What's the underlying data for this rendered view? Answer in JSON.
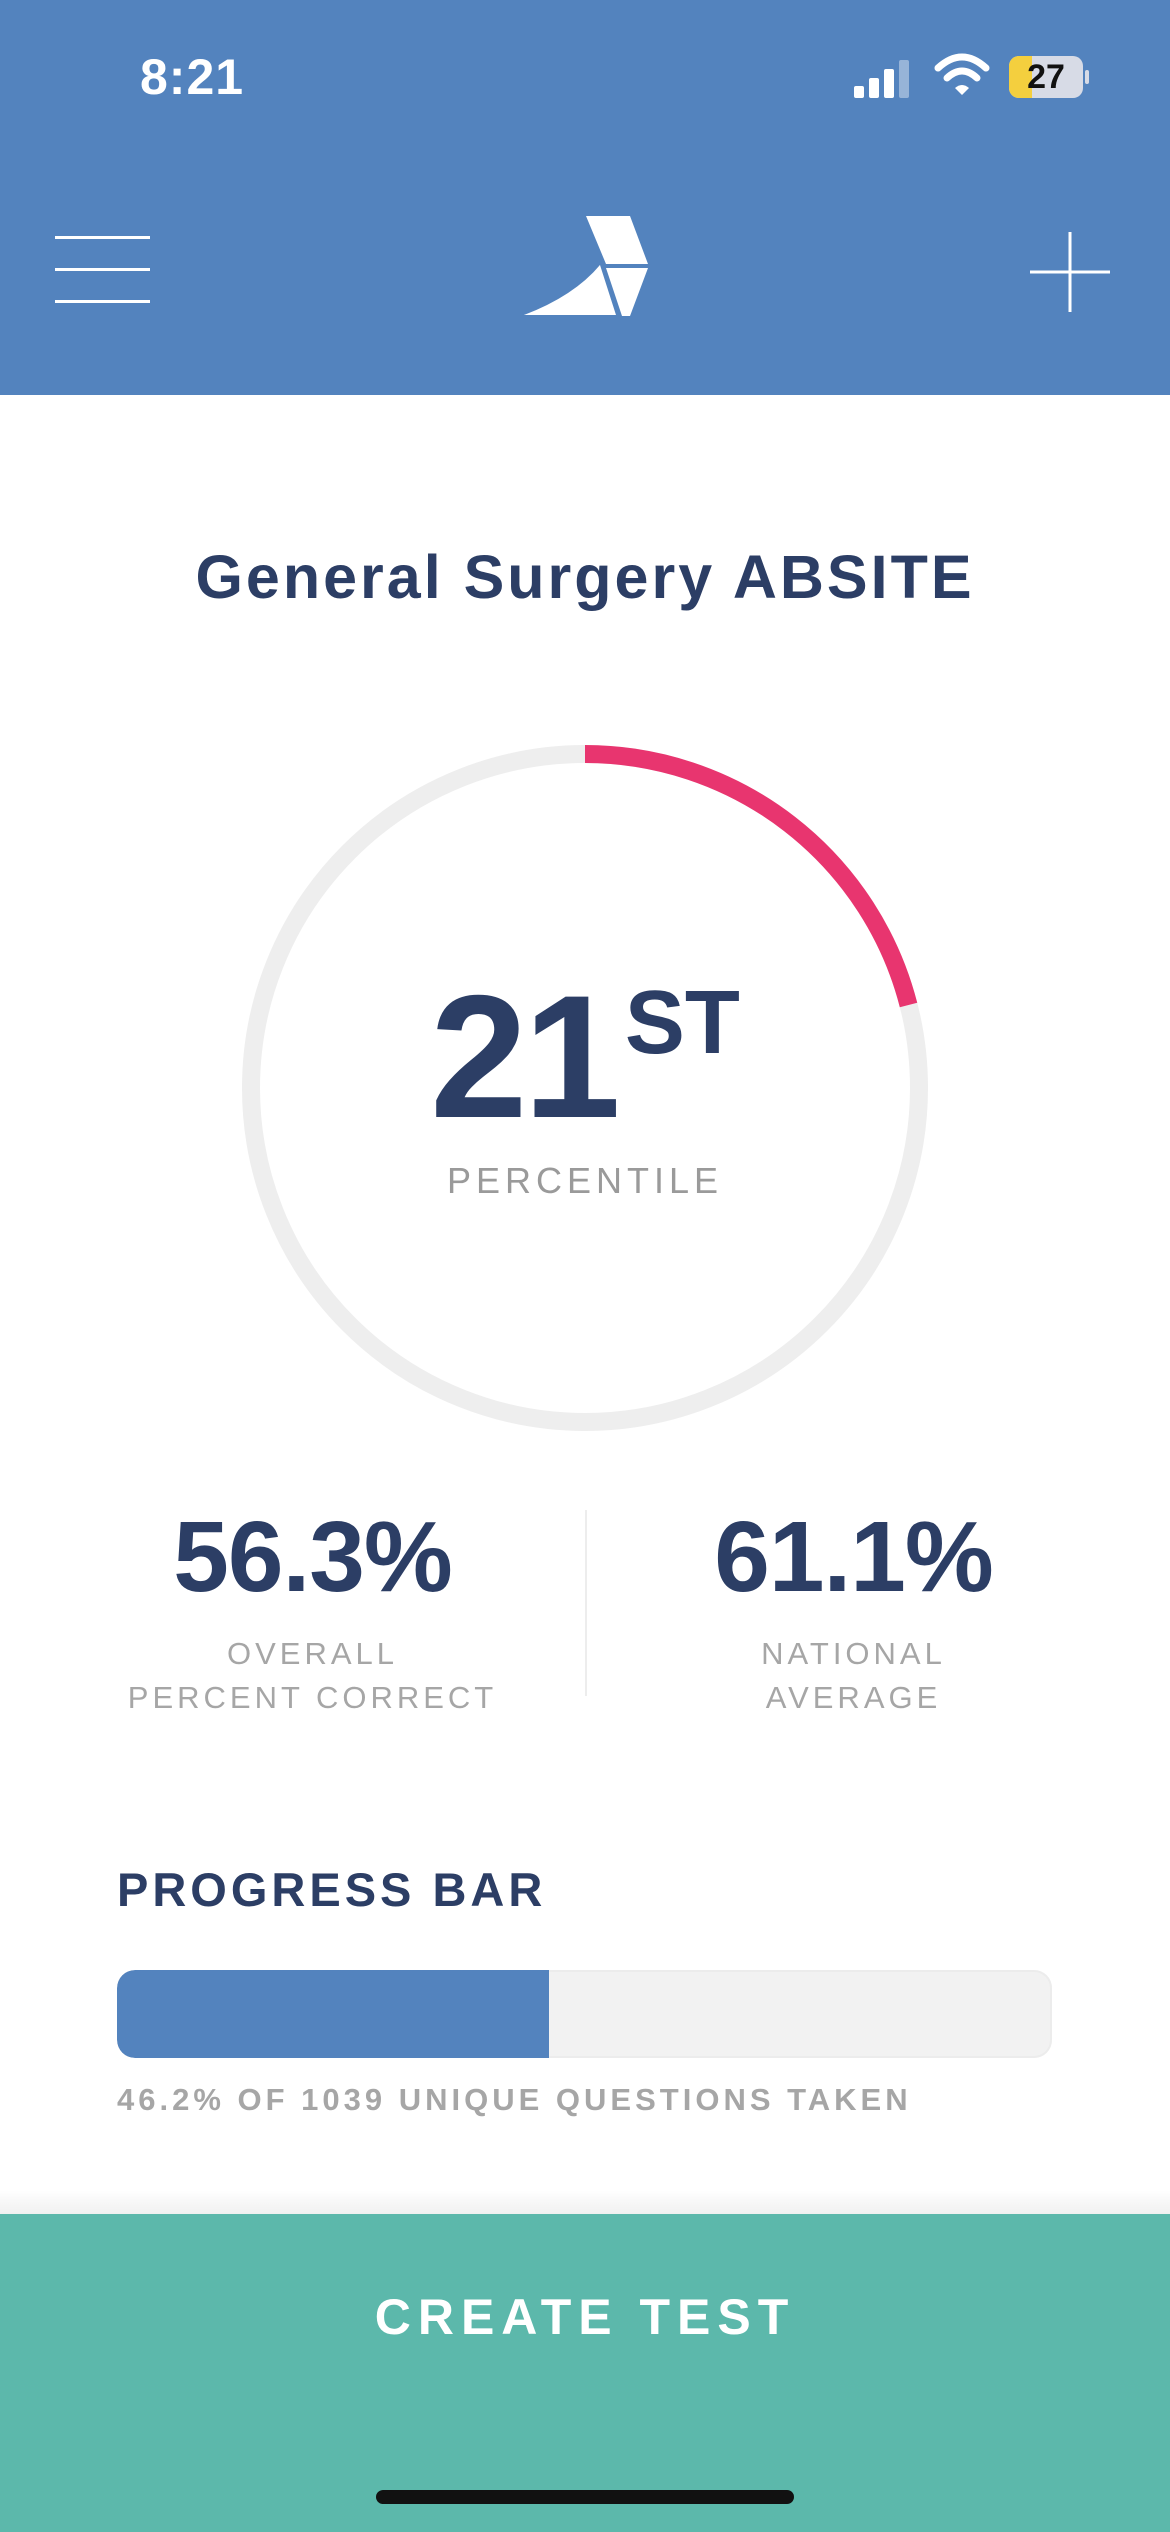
{
  "status_bar": {
    "time": "8:21",
    "battery_level": "27",
    "icons": [
      "signal-icon",
      "wifi-icon",
      "battery-icon"
    ]
  },
  "header": {
    "menu_icon": "hamburger-menu-icon",
    "logo_icon": "app-logo-icon",
    "add_icon": "plus-icon"
  },
  "title": "General Surgery ABSITE",
  "percentile": {
    "value": "21",
    "suffix": "ST",
    "label": "PERCENTILE",
    "ring_fraction": 0.21
  },
  "stats": {
    "overall": {
      "value": "56.3%",
      "label_line1": "OVERALL",
      "label_line2": "PERCENT CORRECT"
    },
    "national": {
      "value": "61.1%",
      "label_line1": "NATIONAL",
      "label_line2": "AVERAGE"
    }
  },
  "progress": {
    "heading": "PROGRESS BAR",
    "fraction": 0.462,
    "caption": "46.2% OF 1039 UNIQUE QUESTIONS TAKEN"
  },
  "create_test": {
    "label": "CREATE TEST"
  },
  "colors": {
    "header_blue": "#5383be",
    "title_navy": "#2c3e65",
    "ring_pink": "#e8356f",
    "ring_track": "#eeeeee",
    "progress_track": "#f2f2f2",
    "create_teal": "#5cb8ab",
    "muted_gray": "#a6a6a6"
  }
}
